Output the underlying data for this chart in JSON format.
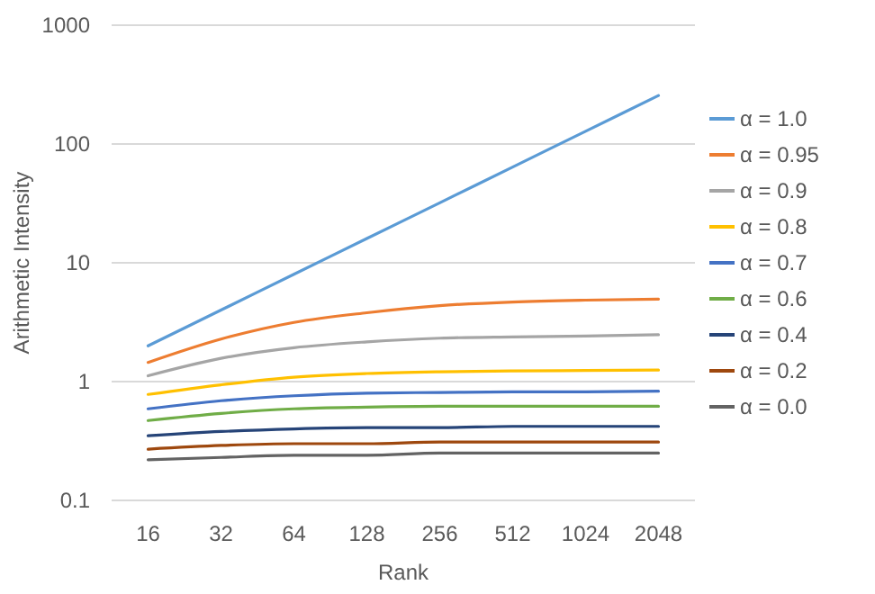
{
  "chart_data": {
    "type": "line",
    "xlabel": "Rank",
    "ylabel": "Arithmetic Intensity",
    "categories": [
      "16",
      "32",
      "64",
      "128",
      "256",
      "512",
      "1024",
      "2048"
    ],
    "log": true,
    "ylim": [
      0.1,
      1000
    ],
    "yticks": [
      0.1,
      1,
      10,
      100,
      1000
    ],
    "grid": "y",
    "legend": "right",
    "series": [
      {
        "name": "α = 1.0",
        "color": "#5b9bd5",
        "values": [
          2,
          4,
          8,
          16,
          32,
          64,
          128,
          256
        ]
      },
      {
        "name": "α = 0.95",
        "color": "#ed7d31",
        "values": [
          1.45,
          2.28,
          3.15,
          3.8,
          4.36,
          4.68,
          4.85,
          4.95
        ]
      },
      {
        "name": "α = 0.9",
        "color": "#a5a5a5",
        "values": [
          1.12,
          1.57,
          1.93,
          2.16,
          2.32,
          2.38,
          2.42,
          2.48
        ]
      },
      {
        "name": "α = 0.8",
        "color": "#ffc000",
        "values": [
          0.78,
          0.94,
          1.09,
          1.17,
          1.21,
          1.23,
          1.24,
          1.25
        ]
      },
      {
        "name": "α = 0.7",
        "color": "#4472c4",
        "values": [
          0.59,
          0.69,
          0.76,
          0.8,
          0.81,
          0.82,
          0.82,
          0.83
        ]
      },
      {
        "name": "α = 0.6",
        "color": "#70ad47",
        "values": [
          0.47,
          0.54,
          0.59,
          0.61,
          0.62,
          0.62,
          0.62,
          0.62
        ]
      },
      {
        "name": "α = 0.4",
        "color": "#264478",
        "values": [
          0.35,
          0.38,
          0.4,
          0.41,
          0.41,
          0.42,
          0.42,
          0.42
        ]
      },
      {
        "name": "α = 0.2",
        "color": "#9e480e",
        "values": [
          0.27,
          0.29,
          0.3,
          0.3,
          0.31,
          0.31,
          0.31,
          0.31
        ]
      },
      {
        "name": "α = 0.0",
        "color": "#636363",
        "values": [
          0.22,
          0.23,
          0.24,
          0.24,
          0.25,
          0.25,
          0.25,
          0.25
        ]
      }
    ]
  }
}
